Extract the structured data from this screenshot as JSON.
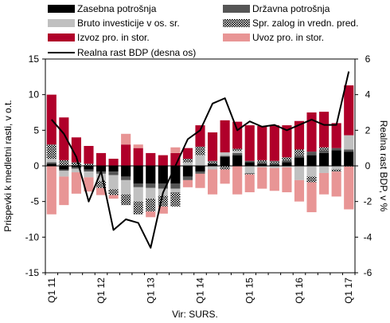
{
  "chart_data": {
    "type": "bar",
    "source": "Vir: SURS.",
    "ylabel": "Prispevki k medletni rasti, v o.t.",
    "y2label": "Realna rast BDP, v %",
    "ylim": [
      -15,
      15
    ],
    "y2lim": [
      -6,
      6
    ],
    "yticks": [
      -15,
      -10,
      -5,
      0,
      5,
      10,
      15
    ],
    "y2ticks": [
      -6,
      -4,
      -2,
      0,
      2,
      4,
      6
    ],
    "xtick_labels": [
      {
        "label": "Q1 11",
        "index": 0
      },
      {
        "label": "Q1 12",
        "index": 4
      },
      {
        "label": "Q1 13",
        "index": 8
      },
      {
        "label": "Q1 14",
        "index": 12
      },
      {
        "label": "Q1 15",
        "index": 16
      },
      {
        "label": "Q1 16",
        "index": 20
      },
      {
        "label": "Q1 17",
        "index": 24
      }
    ],
    "categories": [
      "Q1 11",
      "Q2 11",
      "Q3 11",
      "Q4 11",
      "Q1 12",
      "Q2 12",
      "Q3 12",
      "Q4 12",
      "Q1 13",
      "Q2 13",
      "Q3 13",
      "Q4 13",
      "Q1 14",
      "Q2 14",
      "Q3 14",
      "Q4 14",
      "Q1 15",
      "Q2 15",
      "Q3 15",
      "Q4 15",
      "Q1 16",
      "Q2 16",
      "Q3 16",
      "Q4 16",
      "Q1 17"
    ],
    "series": [
      {
        "name": "Zasebna potrošnja",
        "key": "zasebna",
        "color": "#000000",
        "pattern": "solid",
        "values": [
          0.3,
          -0.5,
          -0.2,
          -0.5,
          -0.8,
          -0.8,
          -1.5,
          -2.5,
          -2.5,
          -2.5,
          -2.5,
          -1.5,
          -0.8,
          0.3,
          1.3,
          1.5,
          0.5,
          0.3,
          0.2,
          0.5,
          1.2,
          1.5,
          1.8,
          2.2,
          2.0
        ]
      },
      {
        "name": "Državna potrošnja",
        "key": "drzavna",
        "color": "#555555",
        "pattern": "solid",
        "values": [
          0.2,
          -0.2,
          -0.2,
          -0.3,
          -0.3,
          -0.5,
          -0.5,
          -0.5,
          -0.6,
          -0.7,
          -0.7,
          -0.5,
          -0.3,
          0.1,
          0.1,
          0.3,
          0.2,
          0.2,
          0.2,
          0.3,
          0.3,
          0.5,
          0.4,
          0.3,
          0.3
        ]
      },
      {
        "name": "Bruto investicije v os. sr.",
        "key": "investicije",
        "color": "#c0c0c0",
        "pattern": "solid",
        "values": [
          0.5,
          -0.8,
          -0.5,
          -0.8,
          -1.0,
          -2.0,
          -2.0,
          -2.0,
          -1.5,
          -1.0,
          -0.5,
          0.5,
          1.5,
          -0.5,
          0.5,
          0.3,
          -1.0,
          -0.2,
          -0.3,
          -0.2,
          -2.0,
          -1.5,
          -1.0,
          -0.5,
          2.0
        ]
      },
      {
        "name": "Spr. zalog in vredn. pred.",
        "key": "zalog",
        "color": "#000000",
        "pattern": "dots",
        "values": [
          2.0,
          0.8,
          0.5,
          0.3,
          -1.0,
          -0.8,
          -1.5,
          -1.8,
          -1.8,
          -1.5,
          -2.0,
          0.5,
          1.2,
          0.3,
          -0.5,
          0.3,
          -0.2,
          0.3,
          0.3,
          0.4,
          0.8,
          -0.8,
          0.4,
          -0.3,
          -0.1
        ]
      },
      {
        "name": "Izvoz pro. in stor.",
        "key": "izvoz",
        "color": "#b0002a",
        "pattern": "solid",
        "values": [
          7.0,
          6.0,
          3.5,
          2.5,
          1.8,
          1.0,
          3.0,
          2.5,
          1.8,
          1.5,
          1.8,
          1.5,
          3.0,
          4.0,
          4.5,
          3.8,
          5.0,
          4.8,
          5.0,
          4.5,
          4.0,
          5.5,
          5.0,
          3.5,
          7.0
        ]
      },
      {
        "name": "Uvoz pro. in stor.",
        "key": "uvoz",
        "color": "#e89595",
        "pattern": "solid",
        "values": [
          -6.8,
          -4.0,
          -3.0,
          -2.0,
          -1.0,
          -0.5,
          1.5,
          0.5,
          -0.8,
          -1.0,
          0.8,
          -1.0,
          -2.0,
          -3.5,
          -2.0,
          -4.0,
          -2.5,
          -3.0,
          -3.2,
          -3.5,
          -3.0,
          -4.2,
          -3.0,
          -3.5,
          -6.0
        ]
      }
    ],
    "line": {
      "name": "Realna rast BDP (desna os)",
      "color": "#000000",
      "values": [
        2.6,
        1.8,
        0.5,
        -2.0,
        -0.3,
        -3.6,
        -3.0,
        -3.2,
        -4.6,
        -1.5,
        0.0,
        1.5,
        2.0,
        3.5,
        3.8,
        2.0,
        2.5,
        2.2,
        2.3,
        2.0,
        2.3,
        2.6,
        2.3,
        2.3,
        5.3
      ]
    }
  }
}
